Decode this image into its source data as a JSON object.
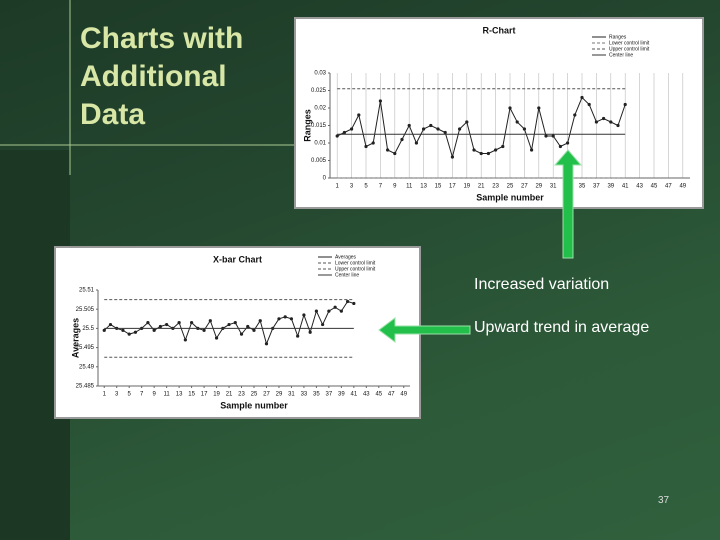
{
  "slide": {
    "title": "Charts with Additional Data",
    "annotations": [
      "Increased variation",
      "Upward trend in average"
    ],
    "page_number": "37"
  },
  "chart_data": [
    {
      "type": "line",
      "title": "R-Chart",
      "x_label": "Sample number",
      "y_label": "Ranges",
      "x": [
        1,
        2,
        3,
        4,
        5,
        6,
        7,
        8,
        9,
        10,
        11,
        12,
        13,
        14,
        15,
        16,
        17,
        18,
        19,
        20,
        21,
        22,
        23,
        24,
        25,
        26,
        27,
        28,
        29,
        30,
        31,
        32,
        33,
        34,
        35,
        36,
        37,
        38,
        39,
        40,
        41
      ],
      "xlim": [
        0,
        50
      ],
      "xticks": [
        1,
        3,
        5,
        7,
        9,
        11,
        13,
        15,
        17,
        19,
        21,
        23,
        25,
        27,
        29,
        31,
        33,
        35,
        37,
        39,
        41,
        43,
        45,
        47,
        49
      ],
      "ylim": [
        0,
        0.03
      ],
      "yticks": [
        0,
        0.005,
        0.01,
        0.015,
        0.02,
        0.025,
        0.03
      ],
      "grid": true,
      "series": [
        {
          "name": "Ranges",
          "color": "#222222",
          "markers": true,
          "dashed": false,
          "values": [
            0.012,
            0.013,
            0.014,
            0.018,
            0.009,
            0.01,
            0.022,
            0.008,
            0.007,
            0.011,
            0.015,
            0.01,
            0.014,
            0.015,
            0.014,
            0.013,
            0.006,
            0.014,
            0.016,
            0.008,
            0.007,
            0.007,
            0.008,
            0.009,
            0.02,
            0.016,
            0.014,
            0.008,
            0.02,
            0.012,
            0.012,
            0.009,
            0.01,
            0.018,
            0.023,
            0.021,
            0.016,
            0.017,
            0.016,
            0.015,
            0.021
          ]
        },
        {
          "name": "Lower control limit",
          "color": "#777777",
          "markers": false,
          "dashed": true,
          "values": [
            0,
            0,
            0,
            0,
            0,
            0,
            0,
            0,
            0,
            0,
            0,
            0,
            0,
            0,
            0,
            0,
            0,
            0,
            0,
            0,
            0,
            0,
            0,
            0,
            0,
            0,
            0,
            0,
            0,
            0,
            0,
            0,
            0,
            0,
            0,
            0,
            0,
            0,
            0,
            0,
            0
          ]
        },
        {
          "name": "Upper control limit",
          "color": "#555555",
          "markers": false,
          "dashed": true,
          "values": [
            0.0255,
            0.0255,
            0.0255,
            0.0255,
            0.0255,
            0.0255,
            0.0255,
            0.0255,
            0.0255,
            0.0255,
            0.0255,
            0.0255,
            0.0255,
            0.0255,
            0.0255,
            0.0255,
            0.0255,
            0.0255,
            0.0255,
            0.0255,
            0.0255,
            0.0255,
            0.0255,
            0.0255,
            0.0255,
            0.0255,
            0.0255,
            0.0255,
            0.0255,
            0.0255,
            0.0255,
            0.0255,
            0.0255,
            0.0255,
            0.0255,
            0.0255,
            0.0255,
            0.0255,
            0.0255,
            0.0255,
            0.0255
          ]
        },
        {
          "name": "Center line",
          "color": "#333333",
          "markers": false,
          "dashed": false,
          "values": [
            0.0125,
            0.0125,
            0.0125,
            0.0125,
            0.0125,
            0.0125,
            0.0125,
            0.0125,
            0.0125,
            0.0125,
            0.0125,
            0.0125,
            0.0125,
            0.0125,
            0.0125,
            0.0125,
            0.0125,
            0.0125,
            0.0125,
            0.0125,
            0.0125,
            0.0125,
            0.0125,
            0.0125,
            0.0125,
            0.0125,
            0.0125,
            0.0125,
            0.0125,
            0.0125,
            0.0125,
            0.0125,
            0.0125,
            0.0125,
            0.0125,
            0.0125,
            0.0125,
            0.0125,
            0.0125,
            0.0125,
            0.0125
          ]
        }
      ]
    },
    {
      "type": "line",
      "title": "X-bar Chart",
      "x_label": "Sample number",
      "y_label": "Averages",
      "x": [
        1,
        2,
        3,
        4,
        5,
        6,
        7,
        8,
        9,
        10,
        11,
        12,
        13,
        14,
        15,
        16,
        17,
        18,
        19,
        20,
        21,
        22,
        23,
        24,
        25,
        26,
        27,
        28,
        29,
        30,
        31,
        32,
        33,
        34,
        35,
        36,
        37,
        38,
        39,
        40,
        41
      ],
      "xlim": [
        0,
        50
      ],
      "xticks": [
        1,
        3,
        5,
        7,
        9,
        11,
        13,
        15,
        17,
        19,
        21,
        23,
        25,
        27,
        29,
        31,
        33,
        35,
        37,
        39,
        41,
        43,
        45,
        47,
        49
      ],
      "ylim": [
        25.485,
        25.51
      ],
      "yticks": [
        25.485,
        25.49,
        25.495,
        25.5,
        25.505,
        25.51
      ],
      "grid": false,
      "series": [
        {
          "name": "Averages",
          "color": "#222222",
          "markers": true,
          "dashed": false,
          "values": [
            25.4995,
            25.501,
            25.5,
            25.4995,
            25.4985,
            25.499,
            25.5,
            25.5015,
            25.4995,
            25.5005,
            25.501,
            25.5,
            25.5015,
            25.497,
            25.5015,
            25.5,
            25.4995,
            25.502,
            25.4975,
            25.5,
            25.501,
            25.5015,
            25.4985,
            25.5005,
            25.4995,
            25.502,
            25.496,
            25.5,
            25.5025,
            25.503,
            25.5025,
            25.498,
            25.5035,
            25.499,
            25.5045,
            25.501,
            25.5045,
            25.5055,
            25.5045,
            25.507,
            25.5065
          ]
        },
        {
          "name": "Lower control limit",
          "color": "#555555",
          "markers": false,
          "dashed": true,
          "values": [
            25.4925,
            25.4925,
            25.4925,
            25.4925,
            25.4925,
            25.4925,
            25.4925,
            25.4925,
            25.4925,
            25.4925,
            25.4925,
            25.4925,
            25.4925,
            25.4925,
            25.4925,
            25.4925,
            25.4925,
            25.4925,
            25.4925,
            25.4925,
            25.4925,
            25.4925,
            25.4925,
            25.4925,
            25.4925,
            25.4925,
            25.4925,
            25.4925,
            25.4925,
            25.4925,
            25.4925,
            25.4925,
            25.4925,
            25.4925,
            25.4925,
            25.4925,
            25.4925,
            25.4925,
            25.4925,
            25.4925,
            25.4925
          ]
        },
        {
          "name": "Upper control limit",
          "color": "#555555",
          "markers": false,
          "dashed": true,
          "values": [
            25.5075,
            25.5075,
            25.5075,
            25.5075,
            25.5075,
            25.5075,
            25.5075,
            25.5075,
            25.5075,
            25.5075,
            25.5075,
            25.5075,
            25.5075,
            25.5075,
            25.5075,
            25.5075,
            25.5075,
            25.5075,
            25.5075,
            25.5075,
            25.5075,
            25.5075,
            25.5075,
            25.5075,
            25.5075,
            25.5075,
            25.5075,
            25.5075,
            25.5075,
            25.5075,
            25.5075,
            25.5075,
            25.5075,
            25.5075,
            25.5075,
            25.5075,
            25.5075,
            25.5075,
            25.5075,
            25.5075,
            25.5075
          ]
        },
        {
          "name": "Center line",
          "color": "#333333",
          "markers": false,
          "dashed": false,
          "values": [
            25.5,
            25.5,
            25.5,
            25.5,
            25.5,
            25.5,
            25.5,
            25.5,
            25.5,
            25.5,
            25.5,
            25.5,
            25.5,
            25.5,
            25.5,
            25.5,
            25.5,
            25.5,
            25.5,
            25.5,
            25.5,
            25.5,
            25.5,
            25.5,
            25.5,
            25.5,
            25.5,
            25.5,
            25.5,
            25.5,
            25.5,
            25.5,
            25.5,
            25.5,
            25.5,
            25.5,
            25.5,
            25.5,
            25.5,
            25.5,
            25.5
          ]
        }
      ]
    }
  ]
}
